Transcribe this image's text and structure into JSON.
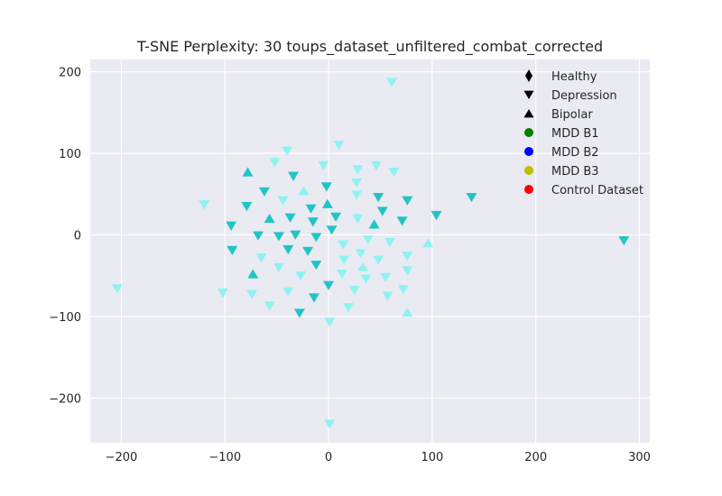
{
  "chart_data": {
    "type": "scatter",
    "title": "T-SNE Perplexity: 30 toups_dataset_unfiltered_combat_corrected",
    "xlabel": "",
    "ylabel": "",
    "xlim": [
      -230,
      310
    ],
    "ylim": [
      -255,
      215
    ],
    "xticks": [
      -200,
      -100,
      0,
      100,
      200,
      300
    ],
    "xtick_labels": [
      "−200",
      "−100",
      "0",
      "100",
      "200",
      "300"
    ],
    "yticks": [
      -200,
      -100,
      0,
      100,
      200
    ],
    "ytick_labels": [
      "−200",
      "−100",
      "0",
      "100",
      "200"
    ],
    "grid": true,
    "background": "#eaeaf2",
    "legend_position": "top-right",
    "legend": [
      {
        "label": "Healthy",
        "marker": "diamond",
        "color": "#000000"
      },
      {
        "label": "Depression",
        "marker": "triangle-down",
        "color": "#000000"
      },
      {
        "label": "Bipolar",
        "marker": "triangle-up",
        "color": "#000000"
      },
      {
        "label": "MDD B1",
        "marker": "circle",
        "color": "#008000"
      },
      {
        "label": "MDD B2",
        "marker": "circle",
        "color": "#0000ff"
      },
      {
        "label": "MDD B3",
        "marker": "circle",
        "color": "#bfbf00"
      },
      {
        "label": "Control Dataset",
        "marker": "circle",
        "color": "#ff0000"
      }
    ],
    "series": [
      {
        "color": "#20c5c5",
        "points": [
          {
            "x": -78,
            "y": 77,
            "m": "up"
          },
          {
            "x": -79,
            "y": 35,
            "m": "down"
          },
          {
            "x": -94,
            "y": 11,
            "m": "down"
          },
          {
            "x": -93,
            "y": -19,
            "m": "down"
          },
          {
            "x": -73,
            "y": -48,
            "m": "up"
          },
          {
            "x": -68,
            "y": -1,
            "m": "down"
          },
          {
            "x": -62,
            "y": 53,
            "m": "down"
          },
          {
            "x": -57,
            "y": 20,
            "m": "up"
          },
          {
            "x": -48,
            "y": -2,
            "m": "down"
          },
          {
            "x": -39,
            "y": -18,
            "m": "down"
          },
          {
            "x": -37,
            "y": 21,
            "m": "down"
          },
          {
            "x": -34,
            "y": 72,
            "m": "down"
          },
          {
            "x": -32,
            "y": 0,
            "m": "down"
          },
          {
            "x": -28,
            "y": -96,
            "m": "down"
          },
          {
            "x": -20,
            "y": -20,
            "m": "down"
          },
          {
            "x": -17,
            "y": 32,
            "m": "down"
          },
          {
            "x": -15,
            "y": 16,
            "m": "down"
          },
          {
            "x": -14,
            "y": -77,
            "m": "down"
          },
          {
            "x": -12,
            "y": -37,
            "m": "down"
          },
          {
            "x": -12,
            "y": -3,
            "m": "down"
          },
          {
            "x": -2,
            "y": 59,
            "m": "down"
          },
          {
            "x": -1,
            "y": 38,
            "m": "up"
          },
          {
            "x": 0,
            "y": -62,
            "m": "down"
          },
          {
            "x": 3,
            "y": 6,
            "m": "down"
          },
          {
            "x": 7,
            "y": 22,
            "m": "down"
          },
          {
            "x": 44,
            "y": 13,
            "m": "up"
          },
          {
            "x": 48,
            "y": 46,
            "m": "down"
          },
          {
            "x": 52,
            "y": 29,
            "m": "down"
          },
          {
            "x": 71,
            "y": 17,
            "m": "down"
          },
          {
            "x": 76,
            "y": 42,
            "m": "down"
          },
          {
            "x": 104,
            "y": 24,
            "m": "down"
          },
          {
            "x": 138,
            "y": 46,
            "m": "down"
          },
          {
            "x": 285,
            "y": -7,
            "m": "down"
          }
        ]
      },
      {
        "color": "#8ff2f2",
        "points": [
          {
            "x": -204,
            "y": -66,
            "m": "down"
          },
          {
            "x": -120,
            "y": 37,
            "m": "down"
          },
          {
            "x": -102,
            "y": -71,
            "m": "down"
          },
          {
            "x": -74,
            "y": -73,
            "m": "down"
          },
          {
            "x": -65,
            "y": -28,
            "m": "down"
          },
          {
            "x": -57,
            "y": -87,
            "m": "down"
          },
          {
            "x": -52,
            "y": 89,
            "m": "down"
          },
          {
            "x": -48,
            "y": -40,
            "m": "down"
          },
          {
            "x": -44,
            "y": 42,
            "m": "down"
          },
          {
            "x": -40,
            "y": 103,
            "m": "down"
          },
          {
            "x": -39,
            "y": -70,
            "m": "down"
          },
          {
            "x": -27,
            "y": -50,
            "m": "down"
          },
          {
            "x": -24,
            "y": 54,
            "m": "up"
          },
          {
            "x": -5,
            "y": 85,
            "m": "down"
          },
          {
            "x": 1,
            "y": -107,
            "m": "down"
          },
          {
            "x": 1,
            "y": -232,
            "m": "down"
          },
          {
            "x": 10,
            "y": 110,
            "m": "down"
          },
          {
            "x": 13,
            "y": -48,
            "m": "down"
          },
          {
            "x": 14,
            "y": -12,
            "m": "down"
          },
          {
            "x": 15,
            "y": -31,
            "m": "down"
          },
          {
            "x": 19,
            "y": -89,
            "m": "down"
          },
          {
            "x": 25,
            "y": -68,
            "m": "down"
          },
          {
            "x": 27,
            "y": 49,
            "m": "down"
          },
          {
            "x": 27,
            "y": 64,
            "m": "down"
          },
          {
            "x": 28,
            "y": 80,
            "m": "down"
          },
          {
            "x": 28,
            "y": 20,
            "m": "down"
          },
          {
            "x": 31,
            "y": -23,
            "m": "down"
          },
          {
            "x": 33,
            "y": -39,
            "m": "up"
          },
          {
            "x": 36,
            "y": -54,
            "m": "down"
          },
          {
            "x": 38,
            "y": -6,
            "m": "down"
          },
          {
            "x": 46,
            "y": 85,
            "m": "down"
          },
          {
            "x": 48,
            "y": -31,
            "m": "down"
          },
          {
            "x": 55,
            "y": -52,
            "m": "down"
          },
          {
            "x": 57,
            "y": -75,
            "m": "down"
          },
          {
            "x": 59,
            "y": -9,
            "m": "down"
          },
          {
            "x": 61,
            "y": 187,
            "m": "down"
          },
          {
            "x": 63,
            "y": 77,
            "m": "down"
          },
          {
            "x": 72,
            "y": -67,
            "m": "down"
          },
          {
            "x": 76,
            "y": -26,
            "m": "down"
          },
          {
            "x": 76,
            "y": -44,
            "m": "down"
          },
          {
            "x": 76,
            "y": -95,
            "m": "up"
          },
          {
            "x": 96,
            "y": -10,
            "m": "up"
          }
        ]
      }
    ]
  }
}
